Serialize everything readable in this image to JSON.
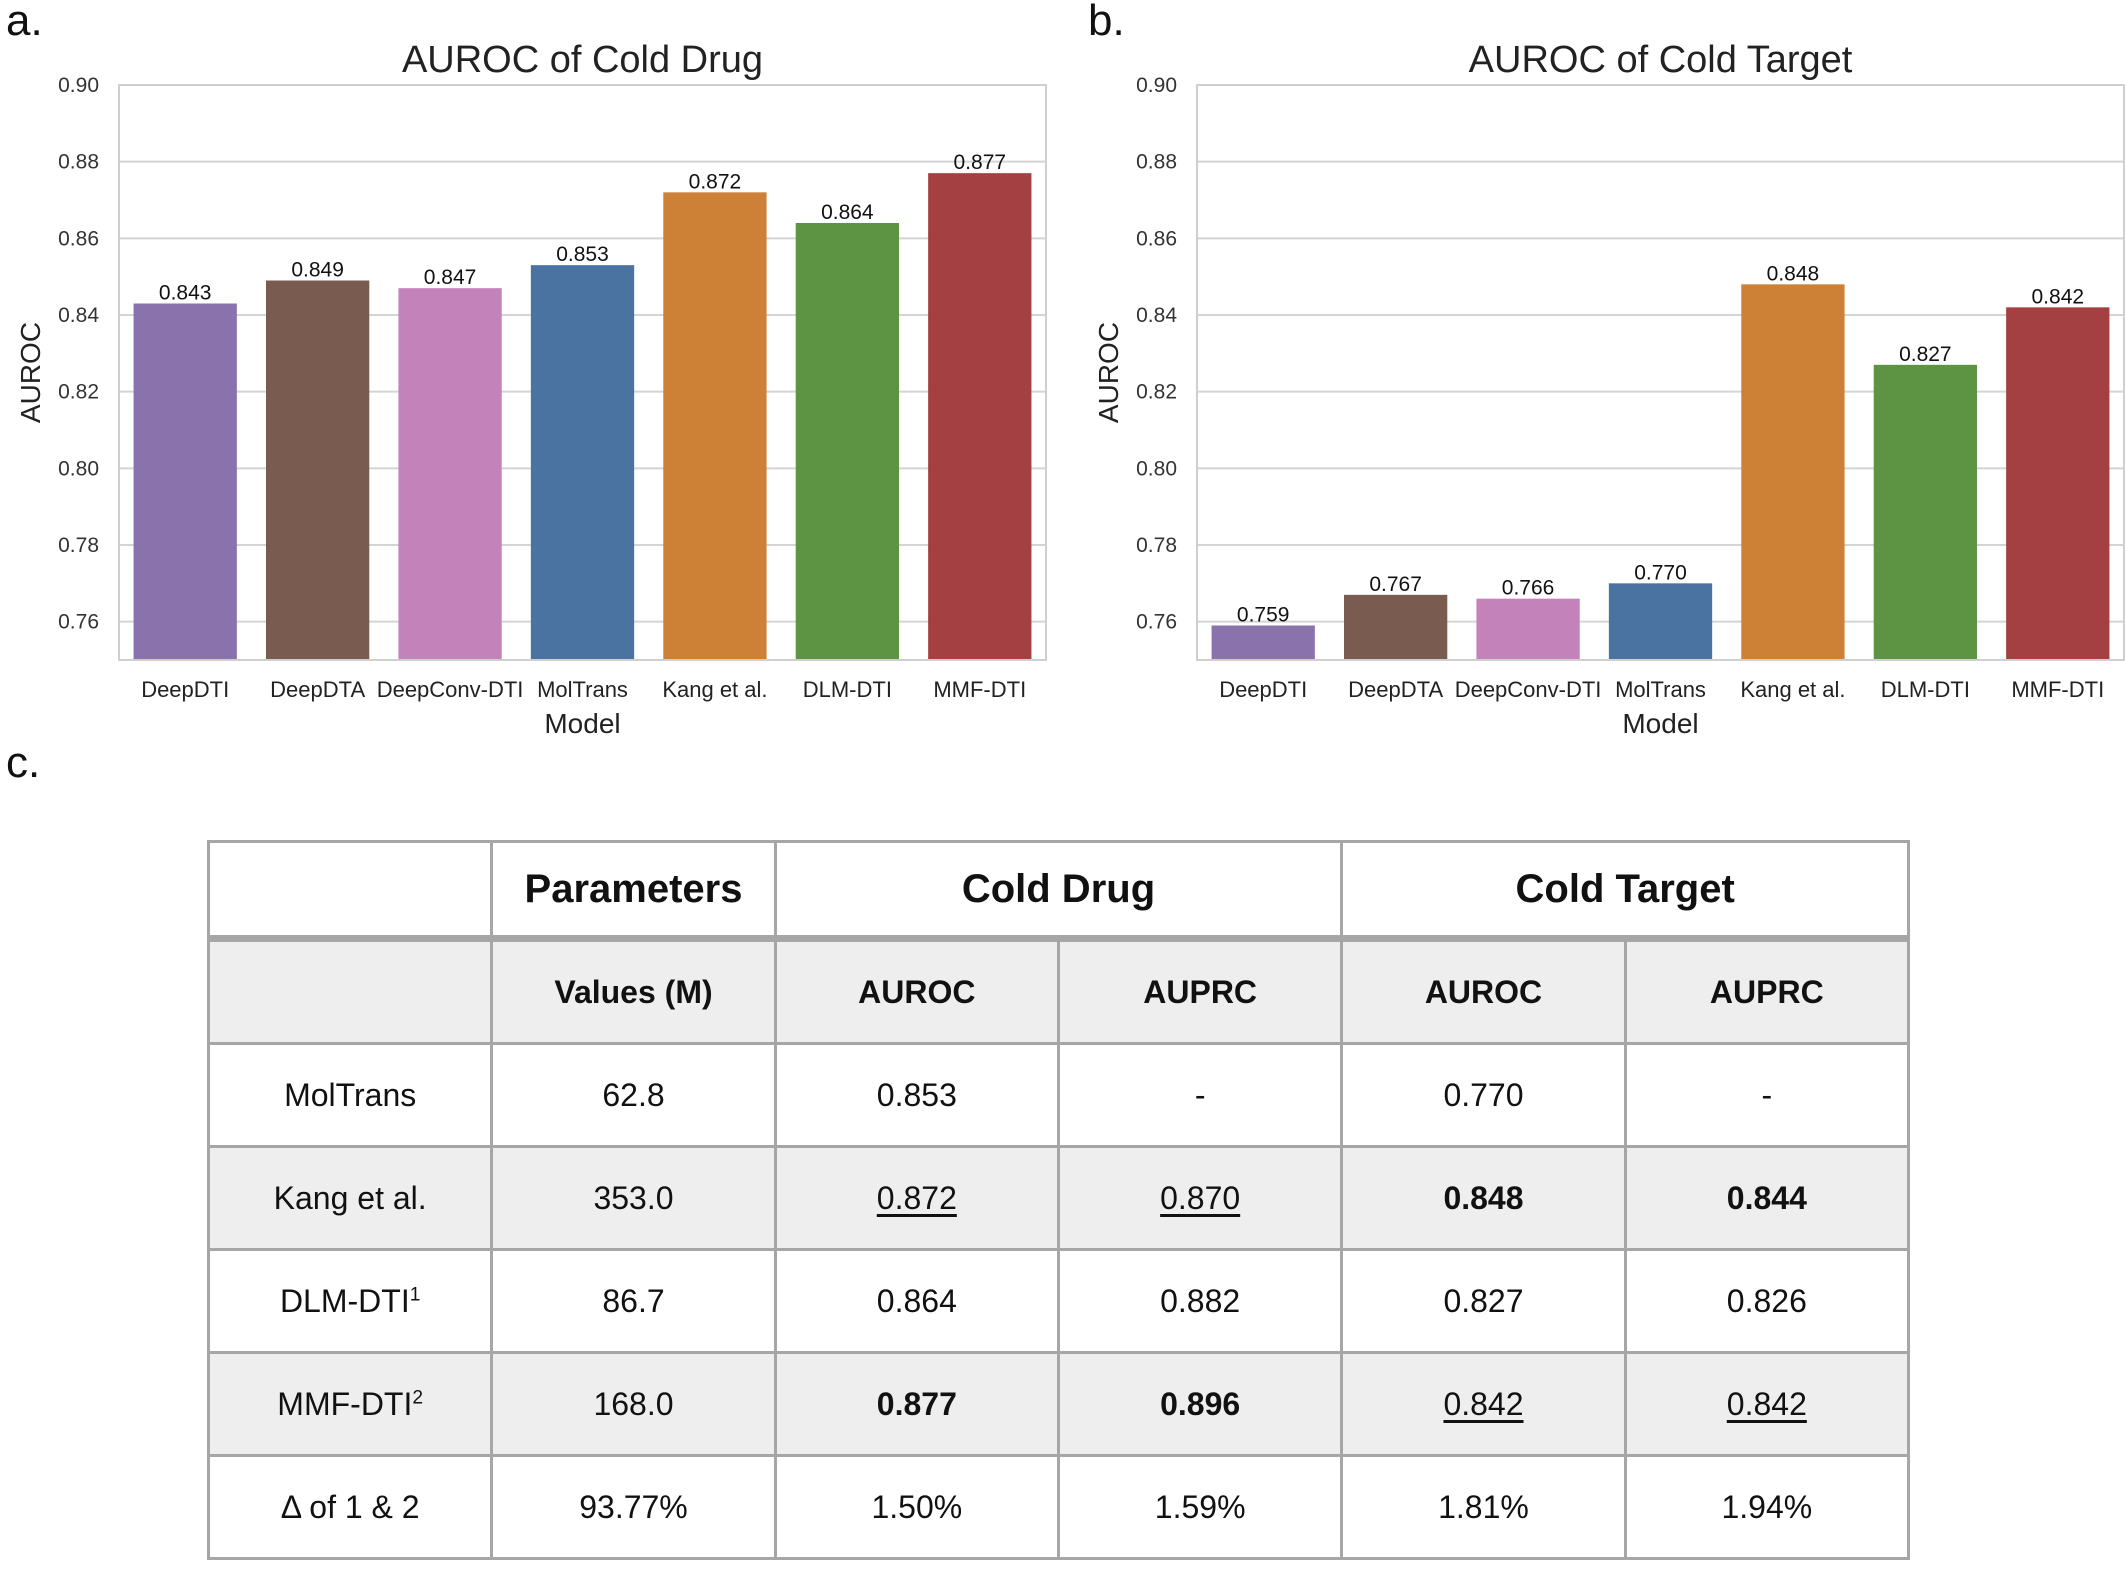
{
  "panels": {
    "a": "a.",
    "b": "b.",
    "c": "c."
  },
  "chart_data": [
    {
      "type": "bar",
      "title": "AUROC of Cold Drug",
      "xlabel": "Model",
      "ylabel": "AUROC",
      "categories": [
        "DeepDTI",
        "DeepDTA",
        "DeepConv-DTI",
        "MolTrans",
        "Kang et al.",
        "DLM-DTI",
        "MMF-DTI"
      ],
      "values": [
        0.843,
        0.849,
        0.847,
        0.853,
        0.872,
        0.864,
        0.877
      ],
      "value_labels": [
        "0.843",
        "0.849",
        "0.847",
        "0.853",
        "0.872",
        "0.864",
        "0.877"
      ],
      "colors": [
        "#8a72ad",
        "#7a5b50",
        "#c482bb",
        "#4a73a1",
        "#cc8137",
        "#5c9444",
        "#a43f42"
      ],
      "ylim": [
        0.75,
        0.9
      ],
      "yticks": [
        "0.76",
        "0.78",
        "0.80",
        "0.82",
        "0.84",
        "0.86",
        "0.88",
        "0.90"
      ],
      "grid": true
    },
    {
      "type": "bar",
      "title": "AUROC of Cold Target",
      "xlabel": "Model",
      "ylabel": "AUROC",
      "categories": [
        "DeepDTI",
        "DeepDTA",
        "DeepConv-DTI",
        "MolTrans",
        "Kang et al.",
        "DLM-DTI",
        "MMF-DTI"
      ],
      "values": [
        0.759,
        0.767,
        0.766,
        0.77,
        0.848,
        0.827,
        0.842
      ],
      "value_labels": [
        "0.759",
        "0.767",
        "0.766",
        "0.770",
        "0.848",
        "0.827",
        "0.842"
      ],
      "colors": [
        "#8a72ad",
        "#7a5b50",
        "#c482bb",
        "#4a73a1",
        "#cc8137",
        "#5c9444",
        "#a43f42"
      ],
      "ylim": [
        0.75,
        0.9
      ],
      "yticks": [
        "0.76",
        "0.78",
        "0.80",
        "0.82",
        "0.84",
        "0.86",
        "0.88",
        "0.90"
      ],
      "grid": true
    }
  ],
  "table": {
    "header1": {
      "blank": "",
      "params": "Parameters",
      "cold_drug": "Cold Drug",
      "cold_target": "Cold Target"
    },
    "header2": {
      "blank": "",
      "values": "Values (M)",
      "cd_auroc": "AUROC",
      "cd_auprc": "AUPRC",
      "ct_auroc": "AUROC",
      "ct_auprc": "AUPRC"
    },
    "rows": [
      {
        "model": "MolTrans",
        "sup": "",
        "params": "62.8",
        "cd_auroc": "0.853",
        "cd_auprc": "-",
        "ct_auroc": "0.770",
        "ct_auprc": "-"
      },
      {
        "model": "Kang et al.",
        "sup": "",
        "params": "353.0",
        "cd_auroc": "0.872",
        "cd_auprc": "0.870",
        "ct_auroc": "0.848",
        "ct_auprc": "0.844"
      },
      {
        "model": "DLM-DTI",
        "sup": "1",
        "params": "86.7",
        "cd_auroc": "0.864",
        "cd_auprc": "0.882",
        "ct_auroc": "0.827",
        "ct_auprc": "0.826"
      },
      {
        "model": "MMF-DTI",
        "sup": "2",
        "params": "168.0",
        "cd_auroc": "0.877",
        "cd_auprc": "0.896",
        "ct_auroc": "0.842",
        "ct_auprc": "0.842"
      },
      {
        "model": "Δ of 1 & 2",
        "sup": "",
        "params": "93.77%",
        "cd_auroc": "1.50%",
        "cd_auprc": "1.59%",
        "ct_auroc": "1.81%",
        "ct_auprc": "1.94%"
      }
    ]
  }
}
